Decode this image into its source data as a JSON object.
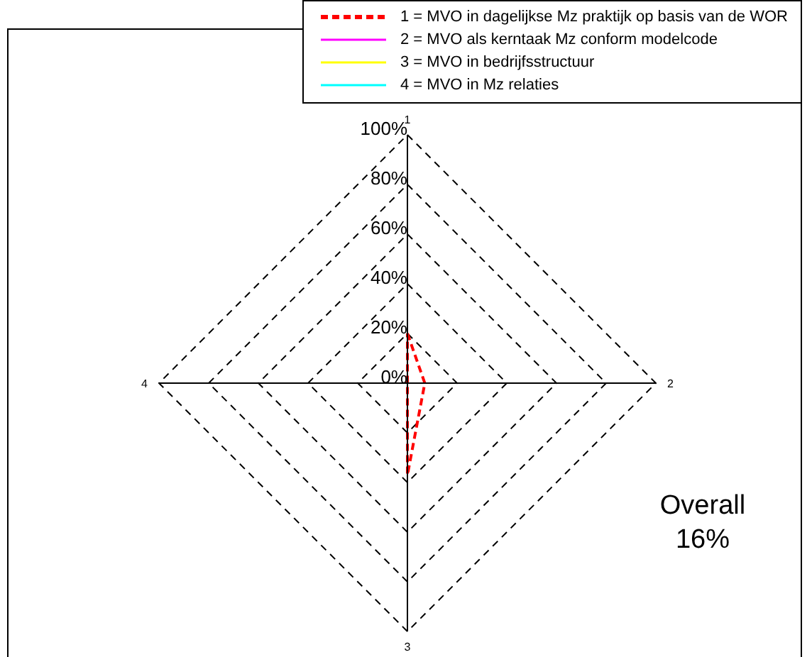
{
  "chart_data": {
    "type": "radar",
    "categories": [
      "1",
      "2",
      "3",
      "4"
    ],
    "series": [
      {
        "name": "1 = MVO in dagelijkse Mz praktijk op basis van de WOR",
        "color": "#ff0000",
        "line_style": "dashed",
        "values": [
          20,
          7,
          37,
          0
        ]
      },
      {
        "name": "2 = MVO als kerntaak Mz conform modelcode",
        "color": "#ff00ff",
        "values": [
          null,
          null,
          null,
          null
        ]
      },
      {
        "name": "3 = MVO in bedrijfsstructuur",
        "color": "#ffff00",
        "values": [
          null,
          null,
          null,
          null
        ]
      },
      {
        "name": "4 = MVO in Mz relaties",
        "color": "#00ffff",
        "values": [
          null,
          null,
          null,
          null
        ]
      }
    ],
    "ylim": [
      0,
      100
    ],
    "yticks": [
      {
        "value": 0,
        "label": "0%"
      },
      {
        "value": 20,
        "label": "20%"
      },
      {
        "value": 40,
        "label": "40%"
      },
      {
        "value": 60,
        "label": "60%"
      },
      {
        "value": 80,
        "label": "80%"
      },
      {
        "value": 100,
        "label": "100%"
      }
    ],
    "grid": true,
    "legend": "top right",
    "marker": "none",
    "annotations": [
      "Overall",
      "16%"
    ]
  }
}
